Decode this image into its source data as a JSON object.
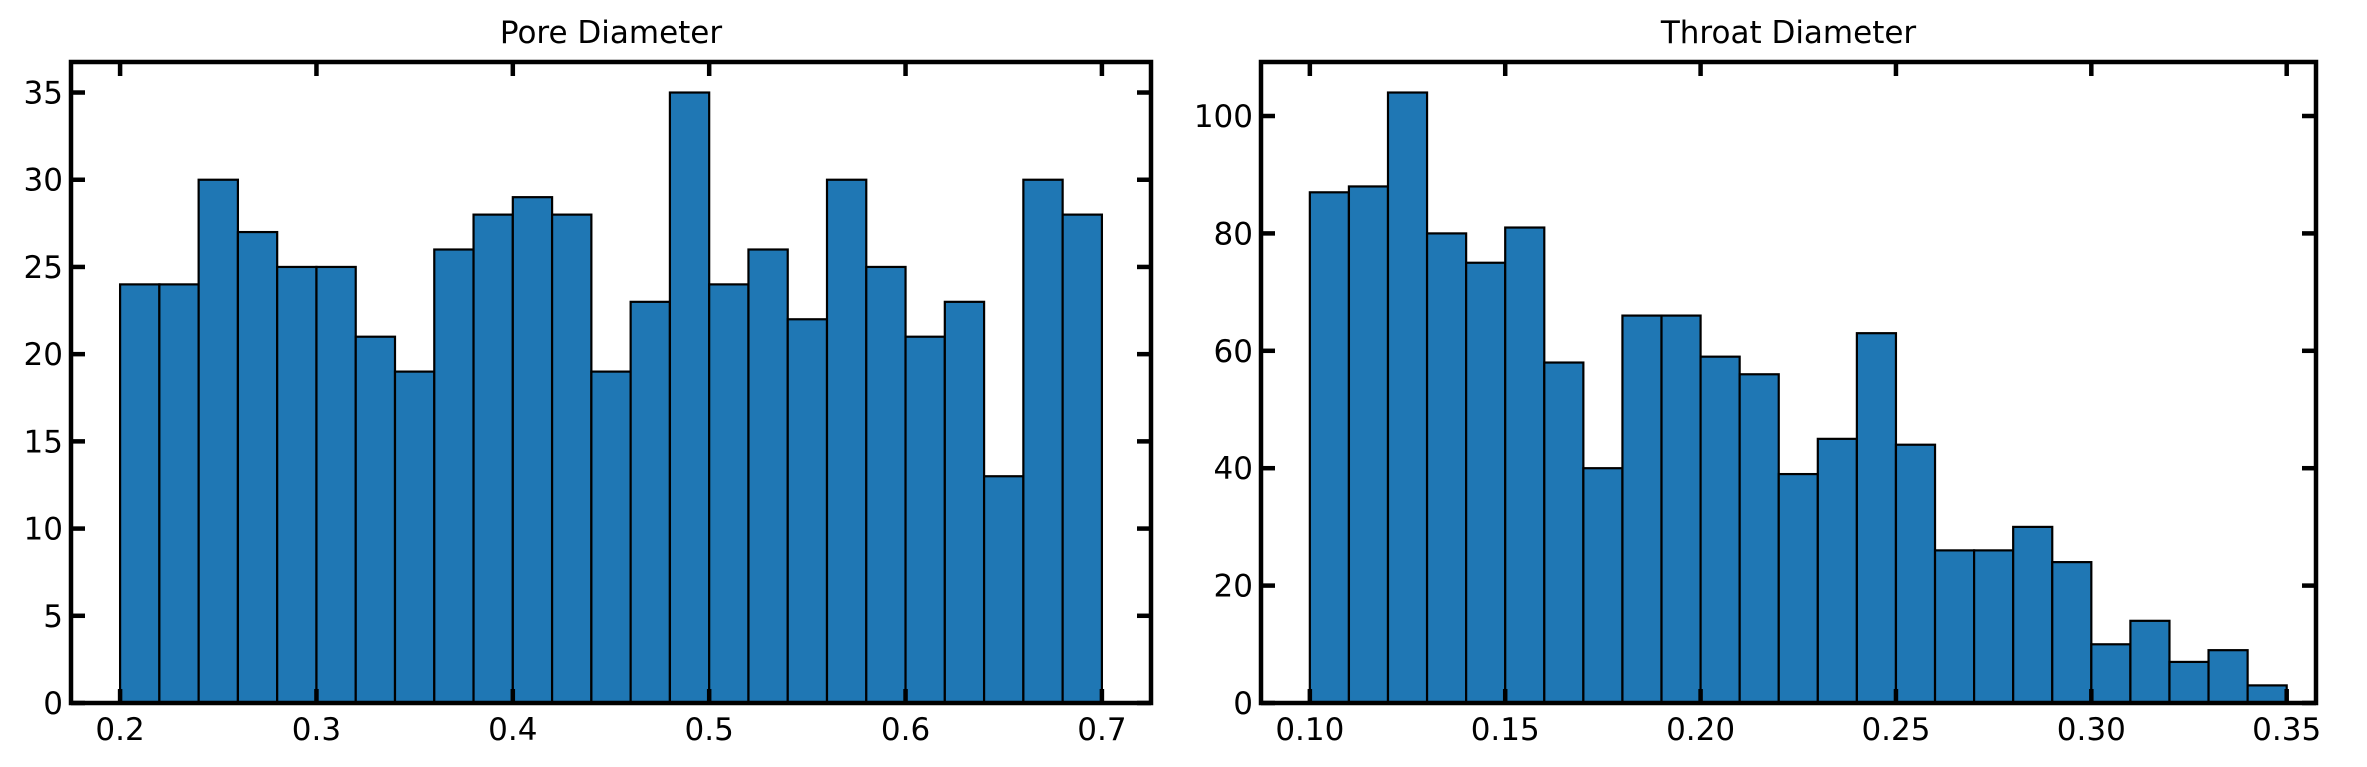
{
  "chart_data": [
    {
      "type": "bar",
      "title": "Pore Diameter",
      "xlabel": "",
      "ylabel": "",
      "bin_edges": [
        0.2,
        0.22,
        0.24,
        0.26,
        0.28,
        0.3,
        0.32,
        0.34,
        0.36,
        0.38,
        0.4,
        0.42,
        0.44,
        0.46,
        0.48,
        0.5,
        0.52,
        0.54,
        0.56,
        0.58,
        0.6,
        0.62,
        0.64,
        0.66,
        0.68,
        0.7
      ],
      "values": [
        24,
        24,
        30,
        27,
        25,
        25,
        21,
        19,
        26,
        28,
        29,
        28,
        19,
        23,
        35,
        24,
        26,
        22,
        30,
        25,
        21,
        23,
        13,
        30,
        28
      ],
      "xlim": [
        0.175,
        0.725
      ],
      "ylim": [
        0,
        36.75
      ],
      "xticks": [
        0.2,
        0.3,
        0.4,
        0.5,
        0.6,
        0.7
      ],
      "xtick_labels": [
        "0.2",
        "0.3",
        "0.4",
        "0.5",
        "0.6",
        "0.7"
      ],
      "yticks": [
        0,
        5,
        10,
        15,
        20,
        25,
        30,
        35
      ],
      "ytick_labels": [
        "0",
        "5",
        "10",
        "15",
        "20",
        "25",
        "30",
        "35"
      ],
      "grid": false,
      "legend": "none",
      "colors": {
        "bar": "#1f77b4",
        "edge": "#000000"
      }
    },
    {
      "type": "bar",
      "title": "Throat Diameter",
      "xlabel": "",
      "ylabel": "",
      "bin_edges": [
        0.1,
        0.11,
        0.12,
        0.13,
        0.14,
        0.15,
        0.16,
        0.17,
        0.18,
        0.19,
        0.2,
        0.21,
        0.22,
        0.23,
        0.24,
        0.25,
        0.26,
        0.27,
        0.28,
        0.29,
        0.3,
        0.31,
        0.32,
        0.33,
        0.34,
        0.35
      ],
      "values": [
        87,
        88,
        104,
        80,
        75,
        81,
        58,
        40,
        66,
        66,
        59,
        56,
        39,
        45,
        63,
        44,
        26,
        26,
        30,
        24,
        10,
        14,
        7,
        9,
        3
      ],
      "xlim": [
        0.0875,
        0.3575
      ],
      "ylim": [
        0,
        109.2
      ],
      "xticks": [
        0.1,
        0.15,
        0.2,
        0.25,
        0.3,
        0.35
      ],
      "xtick_labels": [
        "0.10",
        "0.15",
        "0.20",
        "0.25",
        "0.30",
        "0.35"
      ],
      "yticks": [
        0,
        20,
        40,
        60,
        80,
        100
      ],
      "ytick_labels": [
        "0",
        "20",
        "40",
        "60",
        "80",
        "100"
      ],
      "grid": false,
      "legend": "none",
      "colors": {
        "bar": "#1f77b4",
        "edge": "#000000"
      }
    }
  ]
}
